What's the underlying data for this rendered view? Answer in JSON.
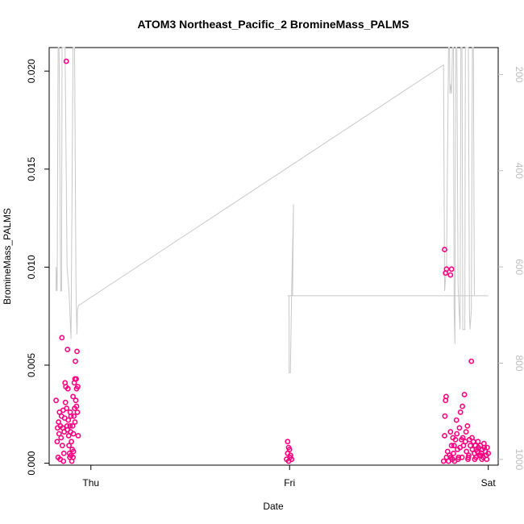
{
  "chart_data": {
    "type": "scatter",
    "title": "ATOM3 Northeast_Pacific_2 BromineMass_PALMS",
    "xlabel": "Date",
    "ylabel": "BromineMass_PALMS",
    "x_ticks": [
      {
        "value": 0,
        "label": "Thu"
      },
      {
        "value": 1,
        "label": "Fri"
      },
      {
        "value": 2,
        "label": "Sat"
      }
    ],
    "xlim": [
      -0.21,
      2.05
    ],
    "ylim": [
      -0.0001,
      0.0212
    ],
    "y_ticks": [
      {
        "value": 0.0,
        "label": "0.000"
      },
      {
        "value": 0.005,
        "label": "0.005"
      },
      {
        "value": 0.01,
        "label": "0.010"
      },
      {
        "value": 0.015,
        "label": "0.015"
      },
      {
        "value": 0.02,
        "label": "0.020"
      }
    ],
    "y2_ticks": [
      {
        "value": 200,
        "label": "200"
      },
      {
        "value": 400,
        "label": "400"
      },
      {
        "value": 600,
        "label": "600"
      },
      {
        "value": 800,
        "label": "800"
      },
      {
        "value": 1000,
        "label": "1000"
      }
    ],
    "y2lim": [
      1012,
      144
    ],
    "colors": {
      "points": "#ff0080",
      "points_light": "#ff8ac4",
      "pressure_line": "#c8c8c8",
      "axis": "#000000",
      "right_axis": "#bdbdbd"
    },
    "series": [
      {
        "type": "scatter",
        "points": [
          [
            -0.175,
            0.0032
          ],
          [
            -0.17,
            0.0011
          ],
          [
            -0.168,
            0.0018
          ],
          [
            -0.165,
            0.0003
          ],
          [
            -0.163,
            0.0021
          ],
          [
            -0.16,
            0.0015
          ],
          [
            -0.158,
            0.0026
          ],
          [
            -0.155,
            0.0002
          ],
          [
            -0.153,
            0.0019
          ],
          [
            -0.15,
            0.0013
          ],
          [
            -0.148,
            0.0024
          ],
          [
            -0.146,
            0.0064
          ],
          [
            -0.144,
            0.0009
          ],
          [
            -0.142,
            0.0018
          ],
          [
            -0.14,
            0.0027
          ],
          [
            -0.138,
            0.0001
          ],
          [
            -0.136,
            0.0005
          ],
          [
            -0.134,
            0.0016
          ],
          [
            -0.132,
            0.0023
          ],
          [
            -0.13,
            0.0041
          ],
          [
            -0.128,
            0.0031
          ],
          [
            -0.126,
            0.0039
          ],
          [
            -0.124,
            0.0205
          ],
          [
            -0.122,
            0.0028
          ],
          [
            -0.12,
            0.0019
          ],
          [
            -0.118,
            0.0058
          ],
          [
            -0.116,
            0.0038
          ],
          [
            -0.114,
            0.0022
          ],
          [
            -0.112,
            0.0014
          ],
          [
            -0.11,
            0.0009
          ],
          [
            -0.108,
            0.0005
          ],
          [
            -0.106,
            0.0003
          ],
          [
            -0.104,
            0.0026
          ],
          [
            -0.102,
            0.0016
          ],
          [
            -0.1,
            0.0004
          ],
          [
            -0.098,
            0.0011
          ],
          [
            -0.096,
            0.0001
          ],
          [
            -0.094,
            0.0007
          ],
          [
            -0.092,
            0.0019
          ],
          [
            -0.09,
            0.0034
          ],
          [
            -0.088,
            0.0015
          ],
          [
            -0.086,
            0.0024
          ],
          [
            -0.084,
            0.0041
          ],
          [
            -0.082,
            0.0028
          ],
          [
            -0.08,
            0.0043
          ],
          [
            -0.078,
            0.0052
          ],
          [
            -0.076,
            0.0032
          ],
          [
            -0.074,
            0.0043
          ],
          [
            -0.072,
            0.0038
          ],
          [
            -0.07,
            0.0057
          ],
          [
            -0.068,
            0.0026
          ],
          [
            -0.066,
            0.0039
          ],
          [
            -0.064,
            0.0014
          ],
          [
            -0.118,
            0.0017
          ],
          [
            -0.1,
            0.0024
          ],
          [
            -0.088,
            0.0006
          ],
          [
            -0.08,
            0.0021
          ],
          [
            -0.072,
            0.0029
          ],
          [
            -0.09,
            0.0003
          ],
          [
            -0.105,
            0.0019
          ],
          [
            0.99,
            0.0011
          ],
          [
            0.995,
            0.0008
          ],
          [
            1.0,
            0.0007
          ],
          [
            1.005,
            0.0004
          ],
          [
            0.985,
            0.0002
          ],
          [
            0.99,
            0.0005
          ],
          [
            1.002,
            0.0003
          ],
          [
            0.995,
            0.0001
          ],
          [
            1.01,
            0.0002
          ],
          [
            1.78,
            0.0109
          ],
          [
            1.785,
            0.0097
          ],
          [
            1.79,
            0.0099
          ],
          [
            1.81,
            0.0096
          ],
          [
            1.815,
            0.0099
          ],
          [
            1.775,
            0.0001
          ],
          [
            1.78,
            0.0014
          ],
          [
            1.782,
            0.0024
          ],
          [
            1.785,
            0.0032
          ],
          [
            1.788,
            0.0034
          ],
          [
            1.79,
            0.0003
          ],
          [
            1.795,
            0.0006
          ],
          [
            1.8,
            0.0001
          ],
          [
            1.805,
            0.0004
          ],
          [
            1.81,
            0.0016
          ],
          [
            1.815,
            0.0009
          ],
          [
            1.82,
            0.0002
          ],
          [
            1.825,
            0.0005
          ],
          [
            1.83,
            0.0001
          ],
          [
            1.835,
            0.0012
          ],
          [
            1.84,
            0.0022
          ],
          [
            1.845,
            0.0007
          ],
          [
            1.85,
            0.0003
          ],
          [
            1.855,
            0.0018
          ],
          [
            1.86,
            0.0026
          ],
          [
            1.865,
            0.0012
          ],
          [
            1.87,
            0.0029
          ],
          [
            1.875,
            0.0009
          ],
          [
            1.88,
            0.0035
          ],
          [
            1.885,
            0.0011
          ],
          [
            1.89,
            0.0006
          ],
          [
            1.895,
            0.0019
          ],
          [
            1.9,
            0.0003
          ],
          [
            1.905,
            0.0012
          ],
          [
            1.91,
            0.0009
          ],
          [
            1.915,
            0.0052
          ],
          [
            1.92,
            0.0007
          ],
          [
            1.925,
            0.0011
          ],
          [
            1.93,
            0.0005
          ],
          [
            1.935,
            0.0009
          ],
          [
            1.94,
            0.0007
          ],
          [
            1.945,
            0.0006
          ],
          [
            1.95,
            0.0008
          ],
          [
            1.955,
            0.0004
          ],
          [
            1.96,
            0.0009
          ],
          [
            1.965,
            0.0005
          ],
          [
            1.97,
            0.0007
          ],
          [
            1.975,
            0.0003
          ],
          [
            1.98,
            0.0008
          ],
          [
            1.985,
            0.0006
          ],
          [
            1.99,
            0.0004
          ],
          [
            1.995,
            0.0008
          ],
          [
            2.0,
            0.0005
          ],
          [
            1.822,
            0.0013
          ],
          [
            1.842,
            0.0015
          ],
          [
            1.858,
            0.0008
          ],
          [
            1.872,
            0.0013
          ],
          [
            1.888,
            0.0016
          ],
          [
            1.902,
            0.0004
          ],
          [
            1.918,
            0.0013
          ],
          [
            1.932,
            0.0002
          ],
          [
            1.948,
            0.0011
          ],
          [
            1.962,
            0.0004
          ],
          [
            1.978,
            0.001
          ],
          [
            1.992,
            0.0002
          ],
          [
            1.812,
            0.0003
          ],
          [
            1.828,
            0.0009
          ],
          [
            1.848,
            0.0002
          ],
          [
            1.868,
            0.0003
          ],
          [
            1.898,
            0.0002
          ],
          [
            1.938,
            0.0003
          ],
          [
            1.968,
            0.0002
          ]
        ]
      },
      {
        "type": "line",
        "axis": "right",
        "points": [
          [
            -0.175,
            650
          ],
          [
            -0.175,
            600
          ],
          [
            -0.17,
            650
          ],
          [
            -0.165,
            144
          ],
          [
            -0.16,
            144
          ],
          [
            -0.152,
            650
          ],
          [
            -0.148,
            650
          ],
          [
            -0.145,
            144
          ],
          [
            -0.13,
            144
          ],
          [
            -0.12,
            600
          ],
          [
            -0.11,
            650
          ],
          [
            -0.1,
            750
          ],
          [
            -0.09,
            144
          ],
          [
            -0.082,
            144
          ],
          [
            -0.075,
            650
          ],
          [
            -0.07,
            740
          ],
          [
            -0.068,
            690
          ],
          [
            -0.062,
            680
          ],
          [
            1.775,
            180
          ],
          [
            1.78,
            650
          ],
          [
            1.79,
            600
          ],
          [
            1.8,
            144
          ],
          [
            1.805,
            144
          ],
          [
            1.807,
            240
          ],
          [
            1.81,
            220
          ],
          [
            1.815,
            240
          ],
          [
            1.82,
            144
          ],
          [
            1.825,
            144
          ],
          [
            1.828,
            690
          ],
          [
            1.832,
            760
          ],
          [
            1.836,
            144
          ],
          [
            1.84,
            144
          ],
          [
            1.842,
            144
          ],
          [
            1.848,
            640
          ],
          [
            1.858,
            730
          ],
          [
            1.862,
            144
          ],
          [
            1.868,
            144
          ],
          [
            1.872,
            730
          ],
          [
            1.882,
            730
          ],
          [
            1.885,
            144
          ],
          [
            1.9,
            144
          ],
          [
            1.905,
            690
          ],
          [
            1.908,
            730
          ],
          [
            1.915,
            690
          ],
          [
            1.92,
            144
          ],
          [
            1.925,
            144
          ],
          [
            1.93,
            660
          ],
          [
            1.932,
            660
          ],
          [
            0.99,
            660
          ],
          [
            0.997,
            660
          ],
          [
            0.998,
            820
          ],
          [
            1.004,
            820
          ],
          [
            1.01,
            660
          ],
          [
            1.02,
            470
          ],
          [
            1.015,
            660
          ],
          [
            2.0,
            660
          ]
        ]
      }
    ]
  }
}
